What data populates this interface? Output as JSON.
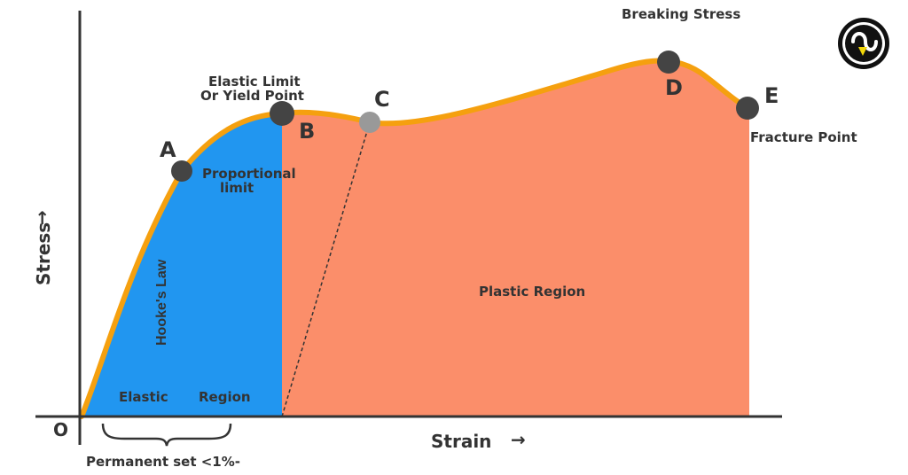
{
  "axes": {
    "origin": "O",
    "x_label": "Strain",
    "y_label": "Stress",
    "arrow_glyph": "→"
  },
  "points": {
    "a": {
      "letter": "A",
      "label_lines": [
        "Proportional",
        "limit"
      ]
    },
    "b": {
      "letter": "B",
      "label_lines": [
        "Elastic Limit",
        "Or Yield Point"
      ]
    },
    "c": {
      "letter": "C"
    },
    "d": {
      "letter": "D",
      "label": "Breaking Stress"
    },
    "e": {
      "letter": "E",
      "label": "Fracture Point"
    }
  },
  "regions": {
    "hookes_law": "Hooke's Law",
    "elastic_word1": "Elastic",
    "elastic_word2": "Region",
    "plastic": "Plastic Region"
  },
  "permanent_set": "Permanent set <1%-",
  "colors": {
    "elastic_fill": "#2196f0",
    "plastic_fill": "#fb8e6a",
    "curve": "#f5a00f",
    "axis": "#333333",
    "point": "#444444",
    "point_c": "#999999",
    "logo_ring": "#111111",
    "logo_accent": "#f2d70a"
  },
  "icons": {
    "logo": "brand-logo-icon"
  }
}
